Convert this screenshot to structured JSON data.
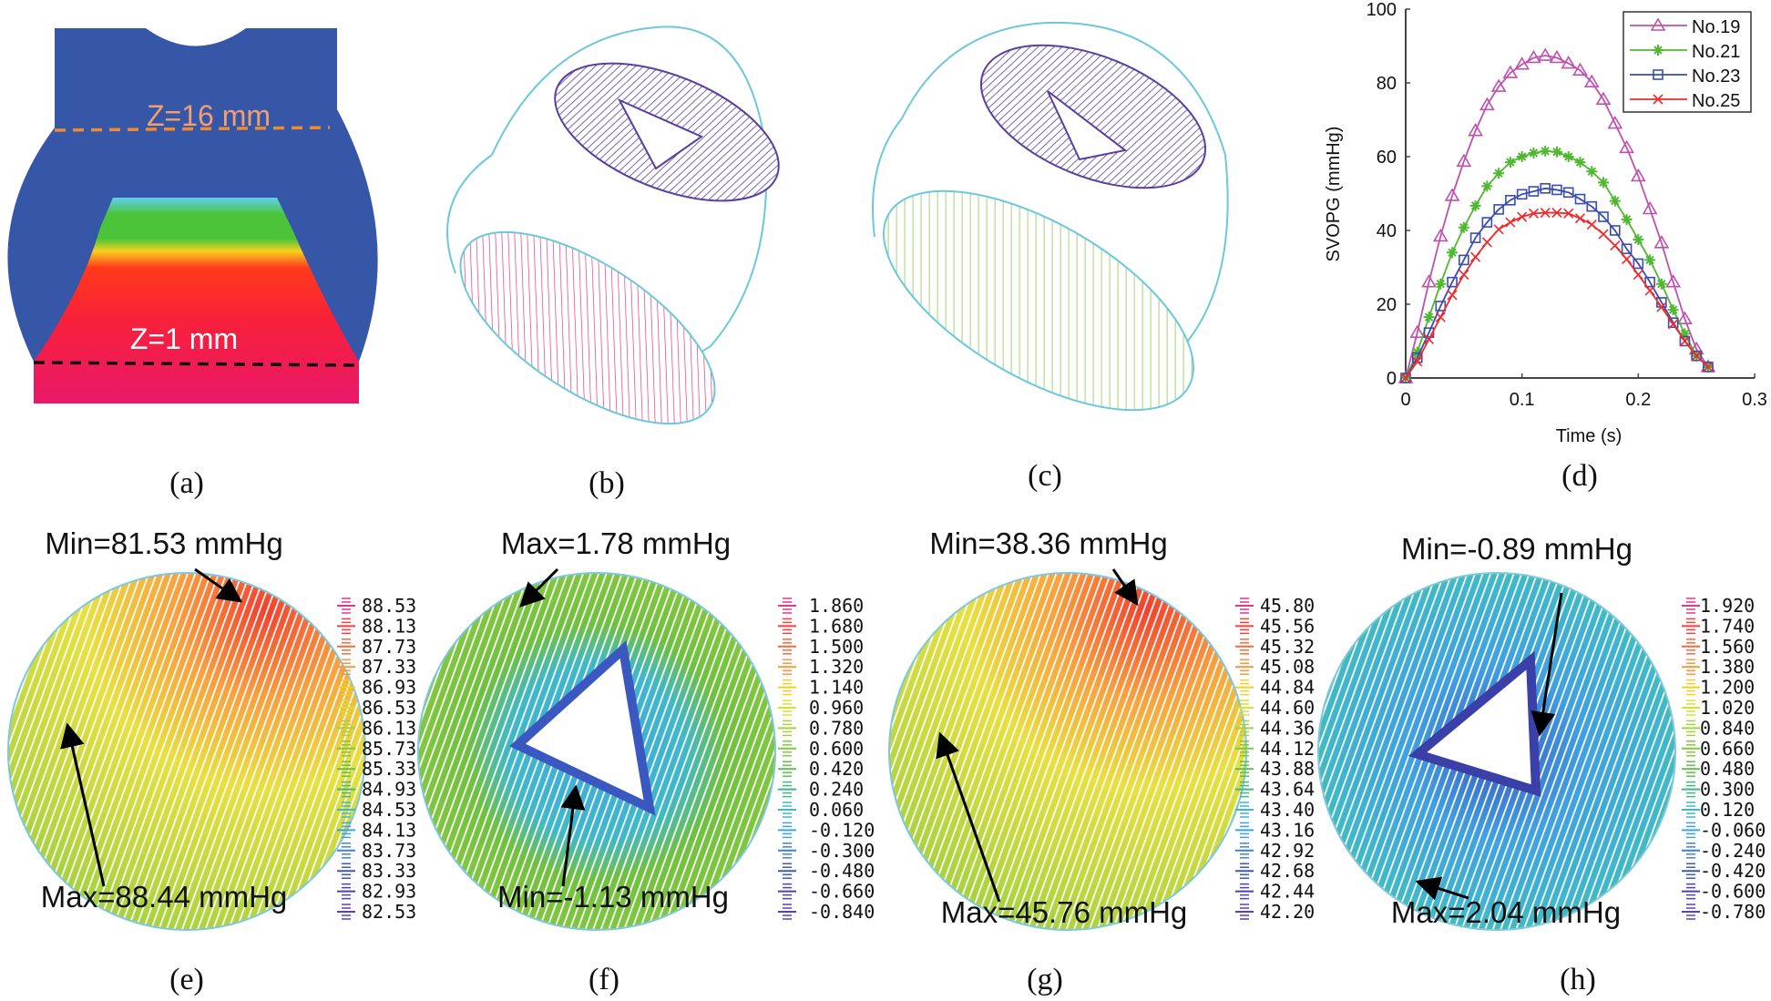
{
  "panel_labels": {
    "a": "(a)",
    "b": "(b)",
    "c": "(c)",
    "d": "(d)",
    "e": "(e)",
    "f": "(f)",
    "g": "(g)",
    "h": "(h)"
  },
  "panel_a": {
    "z_top": "Z=16 mm",
    "z_bottom": "Z=1 mm",
    "colors": {
      "body": "#3656a8",
      "inlet": "#e8186a",
      "hot": "#ff2a1a",
      "band": "#4cc43a",
      "top_line": "#f08a30",
      "bottom_line": "#111111"
    }
  },
  "panel_b": {
    "colors": {
      "upper": "#5a3ea0",
      "lower": "#e8347a",
      "outline": "#6cc8dc"
    }
  },
  "panel_c": {
    "colors": {
      "upper": "#5a3ea0",
      "lower": "#7cbf3a",
      "outline": "#6cc8dc"
    }
  },
  "chart_data": {
    "type": "line",
    "xlabel": "Time (s)",
    "ylabel": "SVOPG (mmHg)",
    "xlim": [
      0,
      0.3
    ],
    "ylim": [
      0,
      100
    ],
    "xticks": [
      "0",
      "0.1",
      "0.2",
      "0.3"
    ],
    "yticks": [
      "0",
      "20",
      "40",
      "60",
      "80",
      "100"
    ],
    "grid": false,
    "legend_position": "top-right",
    "x": [
      0,
      0.01,
      0.02,
      0.03,
      0.04,
      0.05,
      0.06,
      0.07,
      0.08,
      0.09,
      0.1,
      0.11,
      0.12,
      0.13,
      0.14,
      0.15,
      0.16,
      0.17,
      0.18,
      0.19,
      0.2,
      0.21,
      0.22,
      0.23,
      0.24,
      0.25,
      0.26
    ],
    "series": [
      {
        "name": "No.19",
        "color": "#c050b0",
        "marker": "triangle",
        "values": [
          0,
          12.3,
          26,
          38.4,
          49.4,
          58.7,
          67,
          74,
          79,
          82.7,
          85,
          86.8,
          87.4,
          86.8,
          85.3,
          83.4,
          80.2,
          75.5,
          69,
          62.4,
          54.7,
          45.8,
          36.6,
          26,
          16,
          7.8,
          3
        ]
      },
      {
        "name": "No.21",
        "color": "#50b830",
        "marker": "asterisk",
        "values": [
          0,
          7,
          16.5,
          25.5,
          34,
          40.8,
          46.7,
          52,
          55.5,
          58.5,
          60,
          61,
          61.5,
          61.3,
          60,
          58.5,
          56,
          53,
          48,
          43,
          37.5,
          32,
          25.5,
          18.5,
          12,
          6,
          3
        ]
      },
      {
        "name": "No.23",
        "color": "#3a4cb0",
        "marker": "square",
        "values": [
          0,
          5.5,
          12.3,
          19.5,
          26,
          32,
          38,
          42.2,
          45.7,
          48.2,
          49.8,
          50.6,
          51.4,
          51,
          50.3,
          48.5,
          46.5,
          43.7,
          40,
          35,
          31,
          26,
          20.5,
          15,
          10,
          6,
          3
        ]
      },
      {
        "name": "No.25",
        "color": "#f0282a",
        "marker": "x",
        "values": [
          0,
          4.5,
          10.5,
          16.5,
          22.5,
          28,
          32.8,
          36.8,
          40.3,
          42.2,
          43.7,
          44.6,
          44.8,
          44.8,
          44.6,
          43.3,
          41.6,
          39,
          35.9,
          32.2,
          28,
          23.7,
          19.2,
          14.6,
          10,
          6,
          3
        ]
      }
    ]
  },
  "contours": [
    {
      "id": "e",
      "min_label": "Min=81.53 mmHg",
      "max_label": "Max=88.44 mmHg",
      "scale": [
        "88.53",
        "88.13",
        "87.73",
        "87.33",
        "86.93",
        "86.53",
        "86.13",
        "85.73",
        "85.33",
        "84.93",
        "84.53",
        "84.13",
        "83.73",
        "83.33",
        "82.93",
        "82.53"
      ]
    },
    {
      "id": "f",
      "min_label": "Min=-1.13 mmHg",
      "max_label": "Max=1.78 mmHg",
      "scale": [
        "1.860",
        "1.680",
        "1.500",
        "1.320",
        "1.140",
        "0.960",
        "0.780",
        "0.600",
        "0.420",
        "0.240",
        "0.060",
        "-0.120",
        "-0.300",
        "-0.480",
        "-0.660",
        "-0.840"
      ]
    },
    {
      "id": "g",
      "min_label": "Min=38.36 mmHg",
      "max_label": "Max=45.76 mmHg",
      "scale": [
        "45.80",
        "45.56",
        "45.32",
        "45.08",
        "44.84",
        "44.60",
        "44.36",
        "44.12",
        "43.88",
        "43.64",
        "43.40",
        "43.16",
        "42.92",
        "42.68",
        "42.44",
        "42.20"
      ]
    },
    {
      "id": "h",
      "min_label": "Min=-0.89 mmHg",
      "max_label": "Max=2.04 mmHg",
      "scale": [
        "1.920",
        "1.740",
        "1.560",
        "1.380",
        "1.200",
        "1.020",
        "0.840",
        "0.660",
        "0.480",
        "0.300",
        "0.120",
        "-0.060",
        "-0.240",
        "-0.420",
        "-0.600",
        "-0.780"
      ]
    }
  ],
  "scale_colors": [
    "#e8348a",
    "#f04040",
    "#f46a3a",
    "#f8963a",
    "#f0d020",
    "#d8e030",
    "#a8d040",
    "#80c840",
    "#5cc050",
    "#40b880",
    "#40b8c8",
    "#40a0e0",
    "#4080d8",
    "#3a58c0",
    "#4a40b0",
    "#6040a8"
  ]
}
